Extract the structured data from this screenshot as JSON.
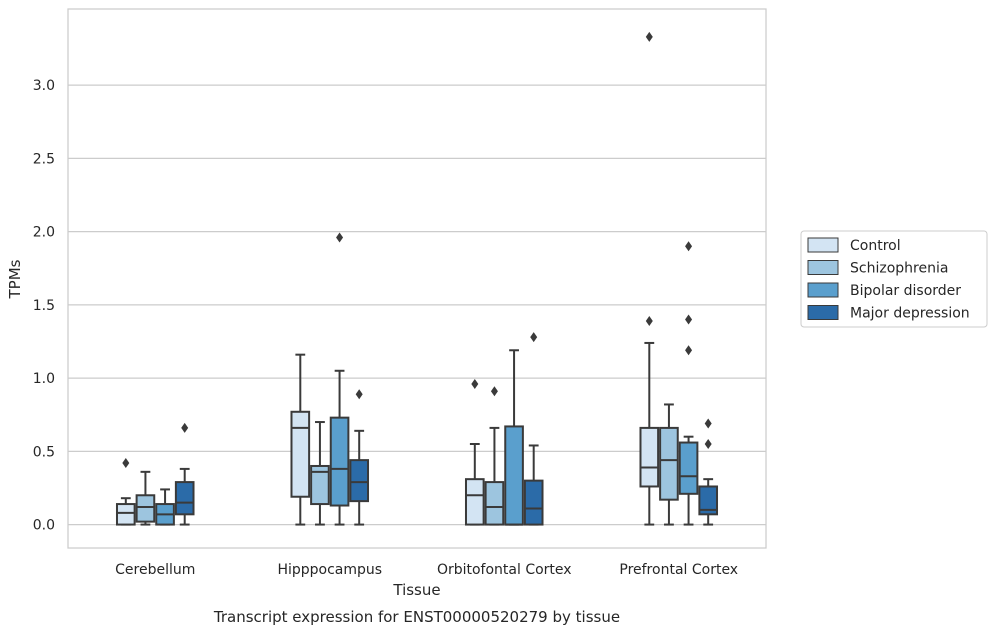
{
  "chart_data": {
    "type": "box",
    "title": "",
    "caption": "Transcript expression for ENST00000520279 by tissue",
    "xlabel": "Tissue",
    "ylabel": "TPMs",
    "ylim": [
      -0.16,
      3.52
    ],
    "yticks": [
      "0.0",
      "0.5",
      "1.0",
      "1.5",
      "2.0",
      "2.5",
      "3.0"
    ],
    "grid": "horizontal",
    "legend_position": "right",
    "categories": [
      "Cerebellum",
      "Hipppocampus",
      "Orbitofontal Cortex",
      "Prefrontal Cortex"
    ],
    "series": [
      {
        "name": "Control",
        "color": "#d3e4f3",
        "boxes": [
          {
            "whislo": 0.0,
            "q1": 0.0,
            "med": 0.08,
            "q3": 0.14,
            "whishi": 0.18,
            "fliers": [
              0.42
            ]
          },
          {
            "whislo": 0.0,
            "q1": 0.19,
            "med": 0.66,
            "q3": 0.77,
            "whishi": 1.16,
            "fliers": []
          },
          {
            "whislo": 0.0,
            "q1": 0.0,
            "med": 0.2,
            "q3": 0.31,
            "whishi": 0.55,
            "fliers": [
              0.96
            ]
          },
          {
            "whislo": 0.0,
            "q1": 0.26,
            "med": 0.39,
            "q3": 0.66,
            "whishi": 1.24,
            "fliers": [
              1.39,
              3.33
            ]
          }
        ]
      },
      {
        "name": "Schizophrenia",
        "color": "#9dc5df",
        "boxes": [
          {
            "whislo": 0.0,
            "q1": 0.02,
            "med": 0.12,
            "q3": 0.2,
            "whishi": 0.36,
            "fliers": []
          },
          {
            "whislo": 0.0,
            "q1": 0.14,
            "med": 0.36,
            "q3": 0.4,
            "whishi": 0.7,
            "fliers": []
          },
          {
            "whislo": 0.0,
            "q1": 0.0,
            "med": 0.12,
            "q3": 0.29,
            "whishi": 0.66,
            "fliers": [
              0.91
            ]
          },
          {
            "whislo": 0.0,
            "q1": 0.17,
            "med": 0.44,
            "q3": 0.66,
            "whishi": 0.82,
            "fliers": []
          }
        ]
      },
      {
        "name": "Bipolar disorder",
        "color": "#5a9fcd",
        "boxes": [
          {
            "whislo": 0.0,
            "q1": 0.0,
            "med": 0.07,
            "q3": 0.14,
            "whishi": 0.24,
            "fliers": []
          },
          {
            "whislo": 0.0,
            "q1": 0.13,
            "med": 0.38,
            "q3": 0.73,
            "whishi": 1.05,
            "fliers": [
              1.96
            ]
          },
          {
            "whislo": 0.0,
            "q1": 0.0,
            "med": 0.0,
            "q3": 0.67,
            "whishi": 1.19,
            "fliers": []
          },
          {
            "whislo": 0.0,
            "q1": 0.21,
            "med": 0.33,
            "q3": 0.56,
            "whishi": 0.6,
            "fliers": [
              1.19,
              1.4,
              1.9
            ]
          }
        ]
      },
      {
        "name": "Major depression",
        "color": "#2b6ba8",
        "boxes": [
          {
            "whislo": 0.0,
            "q1": 0.07,
            "med": 0.15,
            "q3": 0.29,
            "whishi": 0.38,
            "fliers": [
              0.66
            ]
          },
          {
            "whislo": 0.0,
            "q1": 0.16,
            "med": 0.29,
            "q3": 0.44,
            "whishi": 0.64,
            "fliers": [
              0.89
            ]
          },
          {
            "whislo": 0.0,
            "q1": 0.0,
            "med": 0.11,
            "q3": 0.3,
            "whishi": 0.54,
            "fliers": [
              1.28
            ]
          },
          {
            "whislo": 0.0,
            "q1": 0.07,
            "med": 0.1,
            "q3": 0.26,
            "whishi": 0.31,
            "fliers": [
              0.55,
              0.69
            ]
          }
        ]
      }
    ]
  }
}
